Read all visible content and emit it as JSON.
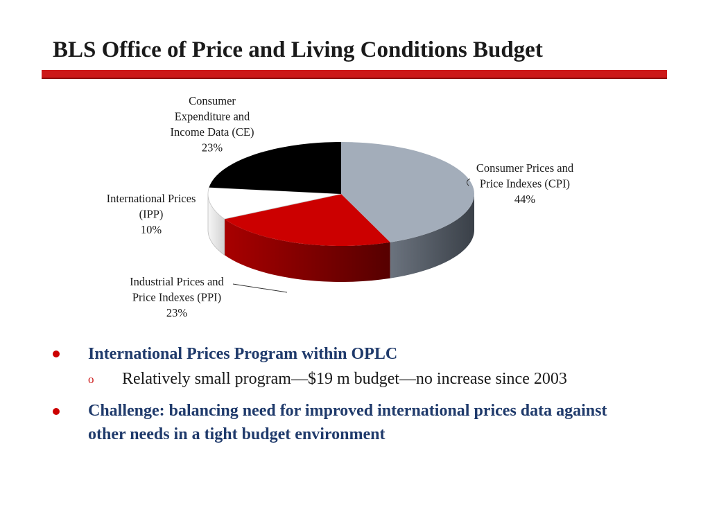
{
  "slide": {
    "title": "BLS Office of Price and Living Conditions Budget"
  },
  "chart_data": {
    "type": "pie",
    "slices": [
      {
        "name": "Consumer Prices and Price Indexes (CPI)",
        "label_lines": [
          "Consumer Prices and",
          "Price Indexes (CPI)"
        ],
        "value": 44,
        "value_label": "44%",
        "color": "#a3adba"
      },
      {
        "name": "Industrial Prices and Price Indexes (PPI)",
        "label_lines": [
          "Industrial Prices and",
          "Price Indexes (PPI)"
        ],
        "value": 23,
        "value_label": "23%",
        "color": "#cc0000"
      },
      {
        "name": "International Prices (IPP)",
        "label_lines": [
          "International Prices",
          "(IPP)"
        ],
        "value": 10,
        "value_label": "10%",
        "color": "#ffffff"
      },
      {
        "name": "Consumer Expenditure and Income Data (CE)",
        "label_lines": [
          "Consumer",
          "Expenditure and",
          "Income Data (CE)"
        ],
        "value": 23,
        "value_label": "23%",
        "color": "#000000"
      }
    ],
    "start": "12 o'clock",
    "direction": "clockwise",
    "style": "3d"
  },
  "bullets": [
    {
      "text": "International Prices Program within OPLC"
    },
    {
      "text": "Challenge: balancing need for improved international prices data against other needs in a tight budget environment"
    }
  ],
  "sub_bullet": {
    "marker": "o",
    "text": "Relatively small program—$19 m budget—no increase since 2003"
  }
}
